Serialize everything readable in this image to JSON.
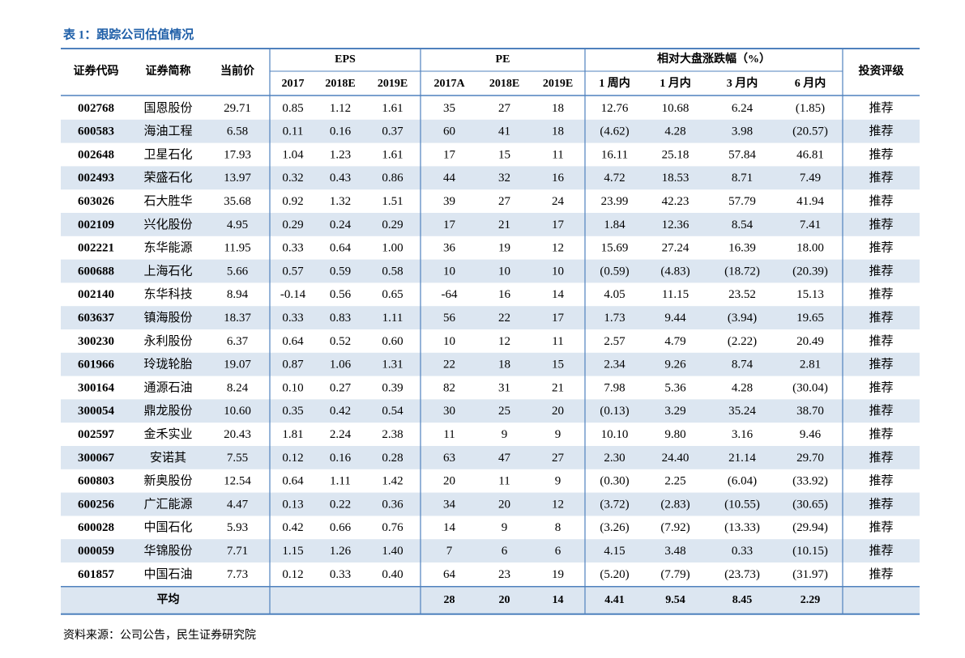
{
  "title": "表 1：跟踪公司估值情况",
  "table": {
    "header": {
      "code": "证券代码",
      "name": "证券简称",
      "price": "当前价",
      "rating": "投资评级",
      "groups": [
        "EPS",
        "PE",
        "相对大盘涨跌幅（%）"
      ],
      "sub": [
        "2017",
        "2018E",
        "2019E",
        "2017A",
        "2018E",
        "2019E",
        "1 周内",
        "1 月内",
        "3 月内",
        "6 月内"
      ]
    },
    "rows": [
      [
        "002768",
        "国恩股份",
        "29.71",
        "0.85",
        "1.12",
        "1.61",
        "35",
        "27",
        "18",
        "12.76",
        "10.68",
        "6.24",
        "(1.85)",
        "推荐"
      ],
      [
        "600583",
        "海油工程",
        "6.58",
        "0.11",
        "0.16",
        "0.37",
        "60",
        "41",
        "18",
        "(4.62)",
        "4.28",
        "3.98",
        "(20.57)",
        "推荐"
      ],
      [
        "002648",
        "卫星石化",
        "17.93",
        "1.04",
        "1.23",
        "1.61",
        "17",
        "15",
        "11",
        "16.11",
        "25.18",
        "57.84",
        "46.81",
        "推荐"
      ],
      [
        "002493",
        "荣盛石化",
        "13.97",
        "0.32",
        "0.43",
        "0.86",
        "44",
        "32",
        "16",
        "4.72",
        "18.53",
        "8.71",
        "7.49",
        "推荐"
      ],
      [
        "603026",
        "石大胜华",
        "35.68",
        "0.92",
        "1.32",
        "1.51",
        "39",
        "27",
        "24",
        "23.99",
        "42.23",
        "57.79",
        "41.94",
        "推荐"
      ],
      [
        "002109",
        "兴化股份",
        "4.95",
        "0.29",
        "0.24",
        "0.29",
        "17",
        "21",
        "17",
        "1.84",
        "12.36",
        "8.54",
        "7.41",
        "推荐"
      ],
      [
        "002221",
        "东华能源",
        "11.95",
        "0.33",
        "0.64",
        "1.00",
        "36",
        "19",
        "12",
        "15.69",
        "27.24",
        "16.39",
        "18.00",
        "推荐"
      ],
      [
        "600688",
        "上海石化",
        "5.66",
        "0.57",
        "0.59",
        "0.58",
        "10",
        "10",
        "10",
        "(0.59)",
        "(4.83)",
        "(18.72)",
        "(20.39)",
        "推荐"
      ],
      [
        "002140",
        "东华科技",
        "8.94",
        "-0.14",
        "0.56",
        "0.65",
        "-64",
        "16",
        "14",
        "4.05",
        "11.15",
        "23.52",
        "15.13",
        "推荐"
      ],
      [
        "603637",
        "镇海股份",
        "18.37",
        "0.33",
        "0.83",
        "1.11",
        "56",
        "22",
        "17",
        "1.73",
        "9.44",
        "(3.94)",
        "19.65",
        "推荐"
      ],
      [
        "300230",
        "永利股份",
        "6.37",
        "0.64",
        "0.52",
        "0.60",
        "10",
        "12",
        "11",
        "2.57",
        "4.79",
        "(2.22)",
        "20.49",
        "推荐"
      ],
      [
        "601966",
        "玲珑轮胎",
        "19.07",
        "0.87",
        "1.06",
        "1.31",
        "22",
        "18",
        "15",
        "2.34",
        "9.26",
        "8.74",
        "2.81",
        "推荐"
      ],
      [
        "300164",
        "通源石油",
        "8.24",
        "0.10",
        "0.27",
        "0.39",
        "82",
        "31",
        "21",
        "7.98",
        "5.36",
        "4.28",
        "(30.04)",
        "推荐"
      ],
      [
        "300054",
        "鼎龙股份",
        "10.60",
        "0.35",
        "0.42",
        "0.54",
        "30",
        "25",
        "20",
        "(0.13)",
        "3.29",
        "35.24",
        "38.70",
        "推荐"
      ],
      [
        "002597",
        "金禾实业",
        "20.43",
        "1.81",
        "2.24",
        "2.38",
        "11",
        "9",
        "9",
        "10.10",
        "9.80",
        "3.16",
        "9.46",
        "推荐"
      ],
      [
        "300067",
        "安诺其",
        "7.55",
        "0.12",
        "0.16",
        "0.28",
        "63",
        "47",
        "27",
        "2.30",
        "24.40",
        "21.14",
        "29.70",
        "推荐"
      ],
      [
        "600803",
        "新奥股份",
        "12.54",
        "0.64",
        "1.11",
        "1.42",
        "20",
        "11",
        "9",
        "(0.30)",
        "2.25",
        "(6.04)",
        "(33.92)",
        "推荐"
      ],
      [
        "600256",
        "广汇能源",
        "4.47",
        "0.13",
        "0.22",
        "0.36",
        "34",
        "20",
        "12",
        "(3.72)",
        "(2.83)",
        "(10.55)",
        "(30.65)",
        "推荐"
      ],
      [
        "600028",
        "中国石化",
        "5.93",
        "0.42",
        "0.66",
        "0.76",
        "14",
        "9",
        "8",
        "(3.26)",
        "(7.92)",
        "(13.33)",
        "(29.94)",
        "推荐"
      ],
      [
        "000059",
        "华锦股份",
        "7.71",
        "1.15",
        "1.26",
        "1.40",
        "7",
        "6",
        "6",
        "4.15",
        "3.48",
        "0.33",
        "(10.15)",
        "推荐"
      ],
      [
        "601857",
        "中国石油",
        "7.73",
        "0.12",
        "0.33",
        "0.40",
        "64",
        "23",
        "19",
        "(5.20)",
        "(7.79)",
        "(23.73)",
        "(31.97)",
        "推荐"
      ]
    ],
    "average": {
      "label": "平均",
      "values": [
        "28",
        "20",
        "14",
        "4.41",
        "9.54",
        "8.45",
        "2.29"
      ]
    }
  },
  "source": "资料来源：公司公告，民生证券研究院"
}
